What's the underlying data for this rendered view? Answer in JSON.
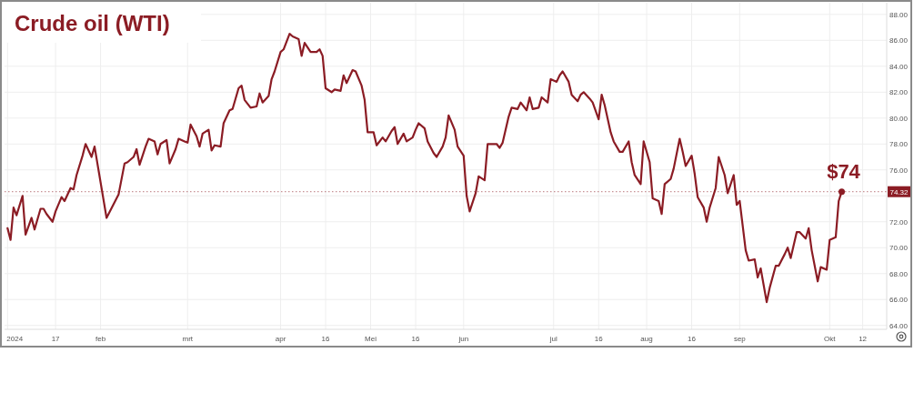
{
  "chart_data": {
    "type": "line",
    "title": "Crude oil (WTI)",
    "x": [
      "2024-01-01",
      "2024-01-02",
      "2024-01-03",
      "2024-01-04",
      "2024-01-06",
      "2024-01-07",
      "2024-01-09",
      "2024-01-10",
      "2024-01-12",
      "2024-01-13",
      "2024-01-14",
      "2024-01-16",
      "2024-01-17",
      "2024-01-19",
      "2024-01-20",
      "2024-01-22",
      "2024-01-23",
      "2024-01-24",
      "2024-01-26",
      "2024-01-27",
      "2024-01-29",
      "2024-01-30",
      "2024-02-03",
      "2024-02-07",
      "2024-02-09",
      "2024-02-10",
      "2024-02-12",
      "2024-02-13",
      "2024-02-14",
      "2024-02-16",
      "2024-02-17",
      "2024-02-19",
      "2024-02-20",
      "2024-02-21",
      "2024-02-23",
      "2024-02-24",
      "2024-02-26",
      "2024-02-27",
      "2024-02-29",
      "2024-03-01",
      "2024-03-02",
      "2024-03-04",
      "2024-03-05",
      "2024-03-06",
      "2024-03-08",
      "2024-03-09",
      "2024-03-10",
      "2024-03-12",
      "2024-03-13",
      "2024-03-15",
      "2024-03-16",
      "2024-03-18",
      "2024-03-19",
      "2024-03-20",
      "2024-03-22",
      "2024-03-24",
      "2024-03-25",
      "2024-03-26",
      "2024-03-28",
      "2024-03-29",
      "2024-03-30",
      "2024-04-01",
      "2024-04-02",
      "2024-04-04",
      "2024-04-05",
      "2024-04-07",
      "2024-04-08",
      "2024-04-09",
      "2024-04-11",
      "2024-04-13",
      "2024-04-14",
      "2024-04-15",
      "2024-04-16",
      "2024-04-18",
      "2024-04-19",
      "2024-04-21",
      "2024-04-22",
      "2024-04-23",
      "2024-04-25",
      "2024-04-26",
      "2024-04-28",
      "2024-04-29",
      "2024-04-30",
      "2024-05-02",
      "2024-05-03",
      "2024-05-05",
      "2024-05-06",
      "2024-05-08",
      "2024-05-09",
      "2024-05-10",
      "2024-05-12",
      "2024-05-13",
      "2024-05-15",
      "2024-05-16",
      "2024-05-17",
      "2024-05-19",
      "2024-05-20",
      "2024-05-22",
      "2024-05-23",
      "2024-05-25",
      "2024-05-26",
      "2024-05-27",
      "2024-05-29",
      "2024-05-30",
      "2024-06-01",
      "2024-06-02",
      "2024-06-03",
      "2024-06-05",
      "2024-06-06",
      "2024-06-08",
      "2024-06-09",
      "2024-06-10",
      "2024-06-12",
      "2024-06-13",
      "2024-06-14",
      "2024-06-16",
      "2024-06-17",
      "2024-06-19",
      "2024-06-20",
      "2024-06-22",
      "2024-06-23",
      "2024-06-24",
      "2024-06-26",
      "2024-06-27",
      "2024-06-29",
      "2024-06-30",
      "2024-07-02",
      "2024-07-03",
      "2024-07-04",
      "2024-07-06",
      "2024-07-07",
      "2024-07-09",
      "2024-07-10",
      "2024-07-11",
      "2024-07-13",
      "2024-07-14",
      "2024-07-16",
      "2024-07-17",
      "2024-07-18",
      "2024-07-20",
      "2024-07-21",
      "2024-07-23",
      "2024-07-24",
      "2024-07-26",
      "2024-07-27",
      "2024-07-28",
      "2024-07-30",
      "2024-07-31",
      "2024-08-02",
      "2024-08-03",
      "2024-08-05",
      "2024-08-06",
      "2024-08-07",
      "2024-08-09",
      "2024-08-10",
      "2024-08-12",
      "2024-08-13",
      "2024-08-14",
      "2024-08-16",
      "2024-08-17",
      "2024-08-18",
      "2024-08-20",
      "2024-08-21",
      "2024-08-22",
      "2024-08-24",
      "2024-08-25",
      "2024-08-27",
      "2024-08-28",
      "2024-08-30",
      "2024-08-31",
      "2024-09-01",
      "2024-09-03",
      "2024-09-04",
      "2024-09-06",
      "2024-09-07",
      "2024-09-08",
      "2024-09-10",
      "2024-09-11",
      "2024-09-13",
      "2024-09-14",
      "2024-09-16",
      "2024-09-17",
      "2024-09-18",
      "2024-09-20",
      "2024-09-21",
      "2024-09-23",
      "2024-09-24",
      "2024-09-25",
      "2024-09-27",
      "2024-09-28",
      "2024-09-30",
      "2024-10-01",
      "2024-10-03",
      "2024-10-04",
      "2024-10-05"
    ],
    "series": [
      {
        "color": "#8b1c24",
        "values": [
          71.5,
          70.6,
          73.1,
          72.5,
          74.0,
          71.0,
          72.3,
          71.4,
          73.0,
          73.0,
          72.6,
          72.0,
          72.8,
          73.9,
          73.6,
          74.6,
          74.5,
          75.6,
          77.1,
          78.0,
          77.0,
          77.8,
          72.3,
          74.1,
          76.5,
          76.6,
          77.0,
          77.6,
          76.4,
          77.8,
          78.4,
          78.2,
          77.2,
          78.0,
          78.3,
          76.5,
          77.6,
          78.4,
          78.2,
          78.1,
          79.5,
          78.6,
          77.8,
          78.8,
          79.1,
          77.5,
          77.9,
          77.8,
          79.6,
          80.6,
          80.7,
          82.3,
          82.5,
          81.4,
          80.8,
          80.9,
          81.9,
          81.2,
          81.7,
          83.0,
          83.6,
          85.1,
          85.3,
          86.5,
          86.3,
          86.1,
          84.8,
          85.8,
          85.1,
          85.1,
          85.3,
          84.8,
          82.3,
          82.0,
          82.2,
          82.1,
          83.3,
          82.7,
          83.7,
          83.6,
          82.5,
          81.4,
          78.9,
          78.9,
          77.9,
          78.5,
          78.2,
          79.0,
          79.3,
          78.0,
          78.8,
          78.2,
          78.5,
          79.1,
          79.6,
          79.2,
          78.2,
          77.3,
          77.0,
          77.8,
          78.5,
          80.2,
          79.1,
          77.8,
          77.1,
          74.0,
          72.8,
          74.2,
          75.5,
          75.2,
          78.0,
          78.0,
          78.0,
          77.7,
          78.1,
          80.1,
          80.8,
          80.7,
          81.2,
          80.6,
          81.6,
          80.7,
          80.8,
          81.6,
          81.2,
          83.0,
          82.8,
          83.3,
          83.6,
          82.8,
          81.8,
          81.3,
          81.8,
          82.0,
          81.5,
          81.2,
          79.9,
          81.8,
          81.0,
          78.9,
          78.2,
          77.4,
          77.4,
          78.2,
          76.6,
          75.6,
          74.9,
          78.2,
          76.6,
          73.8,
          73.6,
          72.6,
          74.9,
          75.3,
          76.1,
          78.4,
          77.4,
          76.3,
          77.1,
          75.7,
          73.9,
          73.1,
          72.0,
          73.1,
          74.6,
          77.0,
          75.6,
          74.2,
          75.6,
          73.3,
          73.6,
          69.8,
          69.0,
          69.1,
          67.7,
          68.4,
          65.8,
          66.9,
          68.6,
          68.6,
          69.5,
          70.0,
          69.2,
          71.2,
          71.2,
          70.7,
          71.5,
          69.8,
          67.4,
          68.5,
          68.3,
          70.6,
          70.8,
          73.6,
          74.32
        ]
      }
    ],
    "xlim": [
      "2023-12-31",
      "2024-10-20"
    ],
    "xticks": [
      {
        "value": "2024-01-01",
        "label": "2024"
      },
      {
        "value": "2024-01-17",
        "label": "17"
      },
      {
        "value": "2024-02-01",
        "label": "feb"
      },
      {
        "value": "2024-03-01",
        "label": "mrt"
      },
      {
        "value": "2024-04-01",
        "label": "apr"
      },
      {
        "value": "2024-04-16",
        "label": "16"
      },
      {
        "value": "2024-05-01",
        "label": "Mei"
      },
      {
        "value": "2024-05-16",
        "label": "16"
      },
      {
        "value": "2024-06-01",
        "label": "jun"
      },
      {
        "value": "2024-07-01",
        "label": "jul"
      },
      {
        "value": "2024-07-16",
        "label": "16"
      },
      {
        "value": "2024-08-01",
        "label": "aug"
      },
      {
        "value": "2024-08-16",
        "label": "16"
      },
      {
        "value": "2024-09-01",
        "label": "sep"
      },
      {
        "value": "2024-10-01",
        "label": "Okt"
      },
      {
        "value": "2024-10-12",
        "label": "12"
      }
    ],
    "ylim": [
      63.7,
      88.9
    ],
    "yticks": [
      {
        "value": 64,
        "label": "64.00"
      },
      {
        "value": 66,
        "label": "66.00"
      },
      {
        "value": 68,
        "label": "68.00"
      },
      {
        "value": 70,
        "label": "70.00"
      },
      {
        "value": 72,
        "label": "72.00"
      },
      {
        "value": 74,
        "label": null
      },
      {
        "value": 76,
        "label": "76.00"
      },
      {
        "value": 78,
        "label": "78.00"
      },
      {
        "value": 80,
        "label": "80.00"
      },
      {
        "value": 82,
        "label": "82.00"
      },
      {
        "value": 84,
        "label": "84.00"
      },
      {
        "value": 86,
        "label": "86.00"
      },
      {
        "value": 88,
        "label": "88.00"
      }
    ],
    "ref_lines": [
      {
        "axis": "y",
        "value": 74.32,
        "label": "74.32",
        "color": "#8b1c24",
        "line_style": "dotted"
      }
    ],
    "annotations": [
      {
        "text": "$74",
        "x": "2024-10-05",
        "y": 74.32
      }
    ],
    "grid": true,
    "marker": "none",
    "line_style": "solid"
  }
}
